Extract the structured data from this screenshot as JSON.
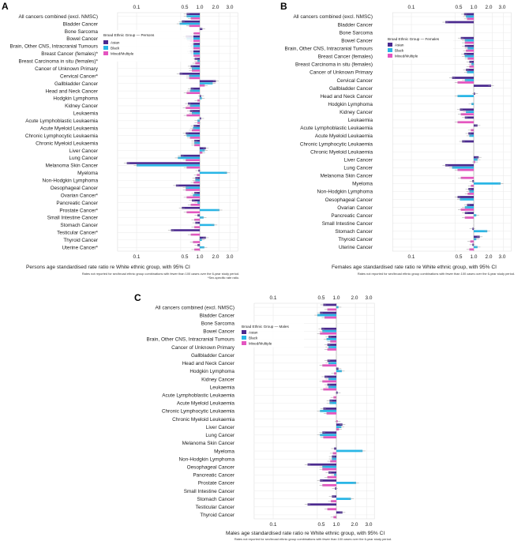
{
  "figure": {
    "ci_label": "95% CI",
    "colors": {
      "Asian": "#4b2a8f",
      "Black": "#29b6e6",
      "Mixed/Multiple": "#e455c0",
      "grid": "#e6e6e6",
      "ref": "#bdbdbd"
    }
  },
  "chart_data": [
    {
      "type": "bar",
      "panel": "A",
      "title": "A",
      "xlabel": "Persons age standardised rate ratio re White ethnic group, with 95% CI",
      "note1": "Rates not reported for sex/broad ethnic group combinations with fewer than 100 cases over the 6-year study period.",
      "note2": "*Sex-specific rate ratio.",
      "legend_title": "Broad Ethnic Group — Persons",
      "legend": [
        "Asian",
        "Black",
        "Mixed/Multiple"
      ],
      "x_scale": "log",
      "xlim": [
        0.05,
        4.0
      ],
      "xticks": [
        0.1,
        0.5,
        1.0,
        2.0,
        3.0
      ],
      "xtick_labels": [
        "0.1",
        "0.5",
        "1.0",
        "2.0",
        "3.0"
      ],
      "reference": 1.0,
      "categories": [
        "All cancers combined (excl. NMSC)",
        "Bladder Cancer",
        "Bone Sarcoma",
        "Bowel Cancer",
        "Brain, Other CNS, Intracranial Tumours",
        "Breast Cancer (females)*",
        "Breast Carcinoma in situ (females)*",
        "Cancer of Unknown Primary",
        "Cervical Cancer*",
        "Gallbladder Cancer",
        "Head and Neck Cancer",
        "Hodgkin Lymphoma",
        "Kidney Cancer",
        "Leukaemia",
        "Acute Lymphoblastic Leukaemia",
        "Acute Myeloid Leukaemia",
        "Chronic Lymphocytic Leukaemia",
        "Chronic Myeloid Leukaemia",
        "Liver Cancer",
        "Lung Cancer",
        "Melanoma Skin Cancer",
        "Myeloma",
        "Non-Hodgkin Lymphoma",
        "Oesophageal Cancer",
        "Ovarian Cancer*",
        "Pancreatic Cancer",
        "Prostate Cancer*",
        "Small Intestine Cancer",
        "Stomach Cancer",
        "Testicular Cancer*",
        "Thyroid Cancer",
        "Uterine Cancer*"
      ],
      "series": [
        {
          "name": "Asian",
          "values": [
            0.62,
            0.52,
            1.1,
            0.6,
            0.75,
            0.7,
            0.83,
            0.72,
            0.48,
            1.8,
            0.72,
            1.05,
            0.65,
            0.7,
            1.05,
            0.8,
            0.6,
            0.82,
            1.25,
            0.5,
            0.07,
            0.95,
            0.85,
            0.42,
            0.82,
            0.75,
            0.52,
            0.92,
            0.85,
            0.35,
            1.25,
            0.92
          ]
        },
        {
          "name": "Black",
          "values": [
            0.62,
            0.48,
            null,
            0.62,
            0.72,
            0.72,
            0.92,
            0.75,
            0.68,
            1.6,
            0.7,
            1.08,
            0.7,
            0.75,
            0.92,
            0.78,
            0.62,
            0.82,
            1.2,
            0.45,
            0.1,
            2.7,
            0.85,
            0.6,
            0.78,
            0.92,
            2.05,
            1.15,
            1.7,
            null,
            1.08,
            1.18
          ]
        },
        {
          "name": "Mixed/Multiple",
          "values": [
            0.72,
            0.68,
            0.8,
            0.7,
            0.75,
            0.8,
            0.85,
            0.75,
            0.68,
            1.2,
            0.62,
            0.92,
            0.6,
            0.62,
            0.92,
            0.75,
            0.7,
            0.82,
            1.1,
            0.6,
            0.62,
            0.9,
            0.8,
            0.6,
            0.62,
            0.72,
            0.62,
            0.82,
            0.82,
            0.72,
            0.78,
            0.82
          ]
        }
      ]
    },
    {
      "type": "bar",
      "panel": "B",
      "title": "B",
      "xlabel": "Females age standardised rate ratio re White ethnic group, with 95% CI",
      "note1": "Rates not reported for sex/broad ethnic group combinations with fewer than 100 cases over the 6-year study period.",
      "legend_title": "Broad Ethnic Group — Females",
      "legend": [
        "Asian",
        "Black",
        "Mixed/Multiple"
      ],
      "x_scale": "log",
      "xlim": [
        0.05,
        4.0
      ],
      "xticks": [
        0.1,
        0.5,
        1.0,
        2.0,
        3.0
      ],
      "xtick_labels": [
        "0.1",
        "0.5",
        "1.0",
        "2.0",
        "3.0"
      ],
      "reference": 1.0,
      "categories": [
        "All cancers combined (excl. NMSC)",
        "Bladder Cancer",
        "Bone Sarcoma",
        "Bowel Cancer",
        "Brain, Other CNS, Intracranial Tumours",
        "Breast Cancer (females)",
        "Breast Carcinoma in situ (females)",
        "Cancer of Unknown Primary",
        "Cervical Cancer",
        "Gallbladder Cancer",
        "Head and Neck Cancer",
        "Hodgkin Lymphoma",
        "Kidney Cancer",
        "Leukaemia",
        "Acute Lymphoblastic Leukaemia",
        "Acute Myeloid Leukaemia",
        "Chronic Lymphocytic Leukaemia",
        "Chronic Myeloid Leukaemia",
        "Liver Cancer",
        "Lung Cancer",
        "Melanoma Skin Cancer",
        "Myeloma",
        "Non-Hodgkin Lymphoma",
        "Oesophageal Cancer",
        "Ovarian Cancer",
        "Pancreatic Cancer",
        "Small Intestine Cancer",
        "Stomach Cancer",
        "Thyroid Cancer",
        "Uterine Cancer"
      ],
      "series": [
        {
          "name": "Asian",
          "values": [
            0.7,
            0.35,
            null,
            0.62,
            0.72,
            0.7,
            0.85,
            0.75,
            0.45,
            1.9,
            1.05,
            null,
            0.6,
            0.72,
            1.15,
            0.82,
            0.65,
            null,
            1.2,
            0.35,
            null,
            0.95,
            0.82,
            0.55,
            0.78,
            0.72,
            null,
            0.95,
            1.25,
            0.95
          ]
        },
        {
          "name": "Black",
          "values": [
            0.75,
            null,
            null,
            0.72,
            0.8,
            0.72,
            0.92,
            0.78,
            0.72,
            null,
            0.55,
            0.92,
            0.75,
            null,
            null,
            0.85,
            null,
            null,
            1.15,
            0.45,
            null,
            2.7,
            0.85,
            0.6,
            0.72,
            1.1,
            null,
            1.65,
            1.1,
            1.15
          ]
        },
        {
          "name": "Mixed/Multiple",
          "values": [
            0.78,
            null,
            null,
            0.72,
            0.75,
            0.8,
            0.85,
            null,
            0.55,
            null,
            null,
            null,
            0.62,
            0.55,
            0.9,
            null,
            null,
            null,
            1.05,
            0.55,
            0.62,
            0.9,
            0.8,
            null,
            0.62,
            0.72,
            null,
            null,
            0.88,
            0.85
          ]
        }
      ]
    },
    {
      "type": "bar",
      "panel": "C",
      "title": "C",
      "xlabel": "Males age standardised rate ratio re White ethnic group, with 95% CI",
      "note1": "Rates not reported for sex/broad ethnic group combinations with fewer than 100 cases over the 6-year study period.",
      "legend_title": "Broad Ethnic Group — Males",
      "legend": [
        "Asian",
        "Black",
        "Mixed/Multiple"
      ],
      "x_scale": "log",
      "xlim": [
        0.05,
        4.0
      ],
      "xticks": [
        0.1,
        0.5,
        1.0,
        2.0,
        3.0
      ],
      "xtick_labels": [
        "0.1",
        "0.5",
        "1.0",
        "2.0",
        "3.0"
      ],
      "reference": 1.0,
      "categories": [
        "All cancers combined (excl. NMSC)",
        "Bladder Cancer",
        "Bone Sarcoma",
        "Bowel Cancer",
        "Brain, Other CNS, Intracranial Tumours",
        "Cancer of Unknown Primary",
        "Gallbladder Cancer",
        "Head and Neck Cancer",
        "Hodgkin Lymphoma",
        "Kidney Cancer",
        "Leukaemia",
        "Acute Lymphoblastic Leukaemia",
        "Acute Myeloid Leukaemia",
        "Chronic Lymphocytic Leukaemia",
        "Chronic Myeloid Leukaemia",
        "Liver Cancer",
        "Lung Cancer",
        "Melanoma Skin Cancer",
        "Myeloma",
        "Non-Hodgkin Lymphoma",
        "Oesophageal Cancer",
        "Pancreatic Cancer",
        "Prostate Cancer",
        "Small Intestine Cancer",
        "Stomach Cancer",
        "Testicular Cancer",
        "Thyroid Cancer"
      ],
      "series": [
        {
          "name": "Asian",
          "values": [
            0.62,
            0.55,
            null,
            0.58,
            0.75,
            0.72,
            null,
            0.72,
            1.08,
            0.65,
            0.72,
            1.05,
            0.78,
            0.62,
            null,
            1.25,
            0.6,
            null,
            0.92,
            0.85,
            0.35,
            0.75,
            0.55,
            0.95,
            0.85,
            0.35,
            1.25
          ]
        },
        {
          "name": "Black",
          "values": [
            1.08,
            0.5,
            null,
            0.6,
            0.7,
            0.75,
            null,
            0.75,
            1.22,
            0.75,
            0.75,
            null,
            0.78,
            0.55,
            null,
            1.2,
            0.55,
            null,
            2.6,
            0.85,
            0.6,
            0.92,
            2.05,
            null,
            1.7,
            null,
            null
          ]
        },
        {
          "name": "Mixed/Multiple",
          "values": [
            0.72,
            0.65,
            null,
            0.55,
            0.8,
            0.72,
            null,
            0.6,
            0.92,
            0.6,
            0.62,
            0.9,
            null,
            0.7,
            1.05,
            1.1,
            0.62,
            null,
            0.88,
            0.8,
            0.6,
            0.72,
            0.6,
            null,
            0.82,
            0.72,
            0.9
          ]
        }
      ]
    }
  ]
}
